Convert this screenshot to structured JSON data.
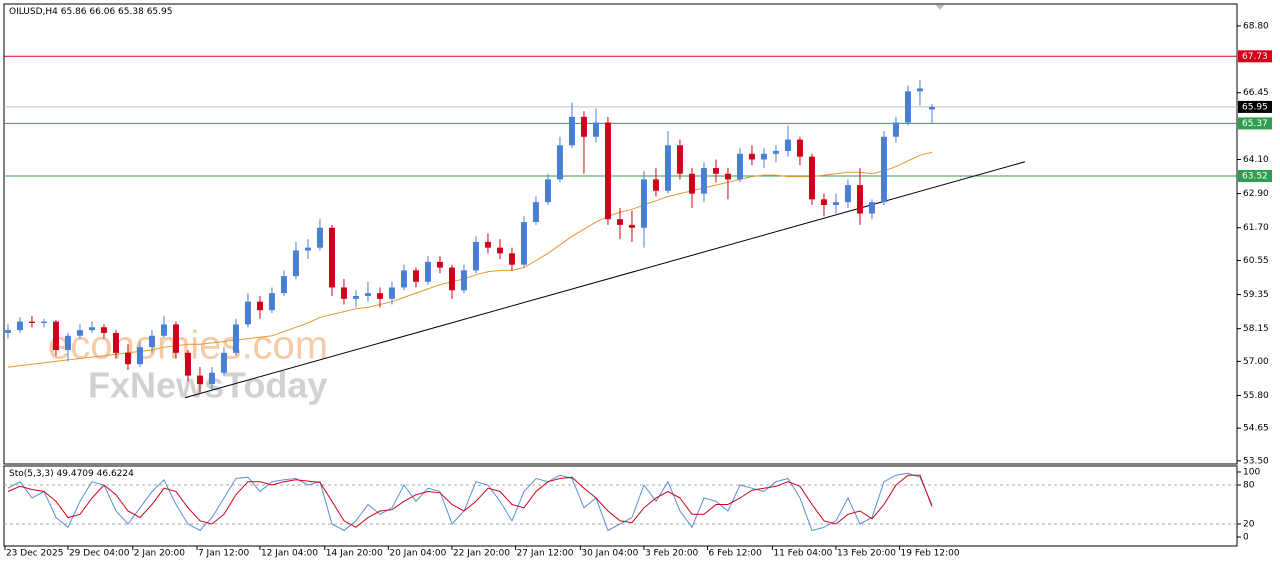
{
  "chart_data": [
    {
      "type": "candlestick",
      "title": "OILUSD,H4",
      "up_color": "#4a7fd6",
      "down_color": "#d0021b",
      "candles": [
        [
          58.0,
          58.3,
          57.8,
          58.1
        ],
        [
          58.1,
          58.55,
          58.0,
          58.4
        ],
        [
          58.4,
          58.6,
          58.2,
          58.35
        ],
        [
          58.35,
          58.5,
          58.2,
          58.4
        ],
        [
          58.4,
          58.45,
          57.2,
          57.4
        ],
        [
          57.4,
          58.0,
          57.0,
          57.9
        ],
        [
          57.9,
          58.3,
          57.8,
          58.1
        ],
        [
          58.1,
          58.4,
          58.0,
          58.2
        ],
        [
          58.2,
          58.3,
          57.8,
          58.0
        ],
        [
          58.0,
          58.1,
          57.1,
          57.3
        ],
        [
          57.3,
          57.6,
          56.7,
          56.9
        ],
        [
          56.9,
          57.7,
          56.8,
          57.5
        ],
        [
          57.5,
          58.1,
          57.3,
          57.9
        ],
        [
          57.9,
          58.6,
          57.8,
          58.3
        ],
        [
          58.3,
          58.4,
          57.1,
          57.3
        ],
        [
          57.3,
          57.4,
          56.3,
          56.5
        ],
        [
          56.5,
          56.8,
          55.9,
          56.2
        ],
        [
          56.2,
          56.8,
          56.0,
          56.6
        ],
        [
          56.6,
          57.5,
          56.5,
          57.3
        ],
        [
          57.3,
          58.5,
          57.2,
          58.3
        ],
        [
          58.3,
          59.4,
          58.2,
          59.1
        ],
        [
          59.1,
          59.3,
          58.5,
          58.8
        ],
        [
          58.8,
          59.6,
          58.7,
          59.4
        ],
        [
          59.4,
          60.2,
          59.3,
          60.0
        ],
        [
          60.0,
          61.2,
          59.9,
          60.9
        ],
        [
          60.9,
          61.3,
          60.6,
          61.0
        ],
        [
          61.0,
          62.0,
          60.9,
          61.7
        ],
        [
          61.7,
          61.8,
          59.3,
          59.6
        ],
        [
          59.6,
          59.9,
          59.0,
          59.2
        ],
        [
          59.2,
          59.5,
          58.9,
          59.3
        ],
        [
          59.3,
          59.8,
          59.1,
          59.4
        ],
        [
          59.4,
          59.6,
          58.9,
          59.2
        ],
        [
          59.2,
          59.8,
          59.0,
          59.6
        ],
        [
          59.6,
          60.4,
          59.5,
          60.2
        ],
        [
          60.2,
          60.3,
          59.6,
          59.8
        ],
        [
          59.8,
          60.7,
          59.7,
          60.5
        ],
        [
          60.5,
          60.7,
          60.1,
          60.3
        ],
        [
          60.3,
          60.4,
          59.2,
          59.5
        ],
        [
          59.5,
          60.4,
          59.4,
          60.2
        ],
        [
          60.2,
          61.4,
          60.1,
          61.2
        ],
        [
          61.2,
          61.5,
          60.8,
          61.0
        ],
        [
          61.0,
          61.3,
          60.6,
          60.8
        ],
        [
          60.8,
          61.0,
          60.2,
          60.4
        ],
        [
          60.4,
          62.1,
          60.3,
          61.9
        ],
        [
          61.9,
          62.8,
          61.8,
          62.6
        ],
        [
          62.6,
          63.6,
          62.5,
          63.4
        ],
        [
          63.4,
          64.9,
          63.3,
          64.6
        ],
        [
          64.6,
          66.1,
          64.5,
          65.6
        ],
        [
          65.6,
          65.8,
          63.6,
          64.9
        ],
        [
          64.9,
          65.9,
          64.7,
          65.4
        ],
        [
          65.4,
          65.6,
          61.8,
          62.0
        ],
        [
          62.0,
          62.4,
          61.3,
          61.8
        ],
        [
          61.8,
          62.3,
          61.2,
          61.7
        ],
        [
          61.7,
          63.7,
          61.0,
          63.4
        ],
        [
          63.4,
          63.8,
          62.8,
          63.0
        ],
        [
          63.0,
          65.1,
          62.9,
          64.6
        ],
        [
          64.6,
          64.8,
          63.4,
          63.6
        ],
        [
          63.6,
          63.8,
          62.4,
          62.9
        ],
        [
          62.9,
          64.0,
          62.6,
          63.8
        ],
        [
          63.8,
          64.1,
          63.3,
          63.6
        ],
        [
          63.6,
          63.8,
          62.7,
          63.4
        ],
        [
          63.4,
          64.5,
          63.3,
          64.3
        ],
        [
          64.3,
          64.6,
          63.9,
          64.1
        ],
        [
          64.1,
          64.5,
          63.8,
          64.3
        ],
        [
          64.3,
          64.6,
          64.0,
          64.4
        ],
        [
          64.4,
          65.3,
          64.2,
          64.8
        ],
        [
          64.8,
          64.9,
          63.9,
          64.2
        ],
        [
          64.2,
          64.3,
          62.5,
          62.7
        ],
        [
          62.7,
          62.9,
          62.1,
          62.5
        ],
        [
          62.5,
          62.9,
          62.2,
          62.6
        ],
        [
          62.6,
          63.4,
          62.4,
          63.2
        ],
        [
          63.2,
          63.8,
          61.8,
          62.2
        ],
        [
          62.2,
          62.7,
          62.0,
          62.6
        ],
        [
          62.6,
          65.1,
          62.5,
          64.9
        ],
        [
          64.9,
          65.6,
          64.7,
          65.4
        ],
        [
          65.4,
          66.7,
          65.3,
          66.5
        ],
        [
          66.5,
          66.9,
          66.0,
          66.6
        ],
        [
          65.86,
          66.06,
          65.38,
          65.95
        ]
      ],
      "ma": {
        "color": "#e69a2e",
        "values": [
          56.8,
          56.85,
          56.9,
          56.95,
          57.0,
          57.05,
          57.1,
          57.15,
          57.2,
          57.25,
          57.3,
          57.35,
          57.4,
          57.5,
          57.55,
          57.6,
          57.6,
          57.65,
          57.7,
          57.75,
          57.8,
          57.85,
          57.9,
          58.05,
          58.2,
          58.35,
          58.55,
          58.65,
          58.75,
          58.85,
          58.9,
          59.0,
          59.1,
          59.25,
          59.4,
          59.55,
          59.7,
          59.8,
          59.9,
          60.05,
          60.15,
          60.2,
          60.2,
          60.3,
          60.55,
          60.8,
          61.1,
          61.4,
          61.65,
          61.9,
          62.1,
          62.25,
          62.35,
          62.5,
          62.65,
          62.8,
          62.9,
          63.0,
          63.1,
          63.2,
          63.3,
          63.4,
          63.5,
          63.55,
          63.55,
          63.5,
          63.5,
          63.5,
          63.55,
          63.6,
          63.65,
          63.65,
          63.6,
          63.7,
          63.85,
          64.05,
          64.25,
          64.35
        ]
      },
      "trendline": {
        "color": "#000000",
        "x": [
          14.75,
          84.75
        ],
        "y": [
          55.72,
          64.02
        ]
      },
      "levels": [
        {
          "value": 67.73,
          "color": "#d0021b",
          "box": "#d0021b"
        },
        {
          "value": 65.95,
          "color": "#c0c0c0",
          "box": "#000000"
        },
        {
          "value": 65.37,
          "color": "#2e9e4f",
          "box": "#2e9e4f"
        },
        {
          "value": 63.52,
          "color": "#2e9e4f",
          "box": "#2e9e4f"
        }
      ],
      "xlim": [
        -0.33,
        102.42
      ],
      "xticks": [
        {
          "value": -0.25,
          "label": "23 Dec 2025"
        },
        {
          "value": 5,
          "label": "29 Dec 04:00"
        },
        {
          "value": 10.4,
          "label": "2 Jan 20:00"
        },
        {
          "value": 15.75,
          "label": "7 Jan 12:00"
        },
        {
          "value": 21,
          "label": "12 Jan 04:00"
        },
        {
          "value": 26.4,
          "label": "14 Jan 20:00"
        },
        {
          "value": 31.7,
          "label": "20 Jan 04:00"
        },
        {
          "value": 37,
          "label": "22 Jan 20:00"
        },
        {
          "value": 42.3,
          "label": "27 Jan 12:00"
        },
        {
          "value": 47.7,
          "label": "30 Jan 04:00"
        },
        {
          "value": 53,
          "label": "3 Feb 20:00"
        },
        {
          "value": 58.3,
          "label": "6 Feb 12:00"
        },
        {
          "value": 63.7,
          "label": "11 Feb 04:00"
        },
        {
          "value": 69,
          "label": "13 Feb 20:00"
        },
        {
          "value": 74.3,
          "label": "19 Feb 12:00"
        }
      ],
      "ylim": [
        53.39,
        69.57
      ],
      "yticks": [
        {
          "value": 68.8,
          "label": "68.80"
        },
        {
          "value": 66.45,
          "label": "66.45"
        },
        {
          "value": 64.1,
          "label": "64.10"
        },
        {
          "value": 62.9,
          "label": "62.90"
        },
        {
          "value": 61.7,
          "label": "61.70"
        },
        {
          "value": 60.55,
          "label": "60.55"
        },
        {
          "value": 59.35,
          "label": "59.35"
        },
        {
          "value": 58.15,
          "label": "58.15"
        },
        {
          "value": 57.0,
          "label": "57.00"
        },
        {
          "value": 55.8,
          "label": "55.80"
        },
        {
          "value": 54.65,
          "label": "54.65"
        },
        {
          "value": 53.5,
          "label": "53.50"
        }
      ],
      "watermarks": [
        "economies.com",
        "FxNewsToday"
      ]
    },
    {
      "type": "line",
      "title": "Sto(5,3,3)",
      "ylim": [
        -13.8,
        109.2
      ],
      "yticks": [
        100,
        80,
        20,
        0
      ],
      "levels": [
        80,
        20
      ],
      "series": [
        {
          "color": "#5b8fd8",
          "values": [
            75,
            85,
            60,
            70,
            30,
            15,
            55,
            85,
            80,
            40,
            20,
            45,
            70,
            88,
            50,
            20,
            10,
            30,
            60,
            90,
            92,
            70,
            85,
            88,
            90,
            80,
            85,
            20,
            10,
            25,
            50,
            35,
            45,
            80,
            55,
            75,
            70,
            20,
            40,
            85,
            80,
            55,
            25,
            70,
            90,
            85,
            95,
            90,
            45,
            60,
            10,
            20,
            30,
            80,
            55,
            85,
            40,
            15,
            60,
            55,
            40,
            80,
            75,
            70,
            85,
            90,
            60,
            10,
            15,
            25,
            60,
            20,
            30,
            85,
            95,
            98,
            92,
            49.4709
          ]
        },
        {
          "color": "#d0021b",
          "values": [
            70,
            78,
            73,
            70,
            55,
            30,
            35,
            60,
            80,
            65,
            40,
            30,
            50,
            75,
            70,
            45,
            25,
            20,
            35,
            65,
            85,
            85,
            80,
            85,
            88,
            86,
            84,
            55,
            25,
            15,
            30,
            40,
            42,
            55,
            65,
            70,
            68,
            50,
            40,
            55,
            75,
            70,
            50,
            45,
            70,
            85,
            90,
            92,
            75,
            60,
            40,
            25,
            22,
            45,
            60,
            70,
            60,
            35,
            35,
            50,
            50,
            60,
            72,
            75,
            78,
            85,
            78,
            50,
            25,
            20,
            35,
            40,
            28,
            50,
            80,
            95,
            95,
            46.6224
          ]
        }
      ]
    }
  ]
}
